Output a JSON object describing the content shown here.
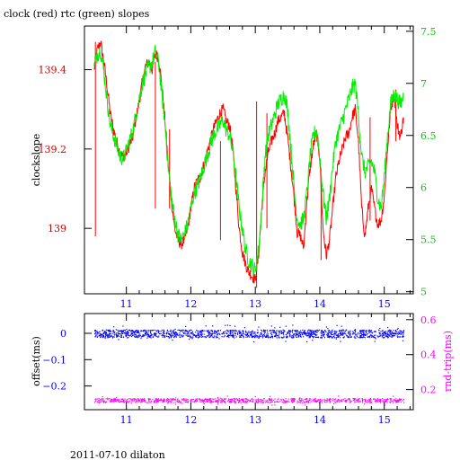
{
  "page": {
    "title": "clock (red) rtc (green) slopes",
    "footer": "2011-07-10 dilaton"
  },
  "colors": {
    "clock": "#ff0000",
    "rtc": "#00ee00",
    "offset": "#0000ff",
    "rndtrip": "#ff00ff",
    "left_axis_top": "#cc0000",
    "right_axis_top": "#00cc00",
    "axis": "#000000"
  },
  "chart_data": [
    {
      "id": "slopes",
      "type": "line",
      "title": "clock (red) rtc (green) slopes",
      "xlabel": "",
      "ylabel": "clockslope",
      "y2label": "",
      "xlim": [
        10.35,
        15.45
      ],
      "ylim": [
        138.835,
        139.51
      ],
      "y2lim": [
        4.98,
        7.55
      ],
      "x_ticks": [
        11,
        12,
        13,
        14,
        15
      ],
      "y_ticks": [
        139,
        139.2,
        139.4
      ],
      "y_tick_labels": [
        "139",
        "139.2",
        "139.4"
      ],
      "y2_ticks": [
        5,
        5.5,
        6,
        6.5,
        7,
        7.5
      ],
      "y2_tick_labels": [
        "5",
        "5.5",
        "6",
        "6.5",
        "7",
        "7.5"
      ],
      "grid": false,
      "series": [
        {
          "name": "clock",
          "axis": "left",
          "x": [
            10.5,
            10.55,
            10.6,
            10.65,
            10.7,
            10.75,
            10.8,
            10.85,
            10.9,
            10.95,
            11.0,
            11.05,
            11.1,
            11.15,
            11.2,
            11.25,
            11.3,
            11.35,
            11.4,
            11.45,
            11.5,
            11.55,
            11.6,
            11.65,
            11.7,
            11.75,
            11.8,
            11.85,
            11.9,
            11.95,
            12.0,
            12.05,
            12.1,
            12.15,
            12.2,
            12.25,
            12.3,
            12.35,
            12.4,
            12.45,
            12.5,
            12.55,
            12.6,
            12.65,
            12.7,
            12.75,
            12.8,
            12.85,
            12.9,
            12.95,
            13.0,
            13.05,
            13.1,
            13.15,
            13.2,
            13.25,
            13.3,
            13.35,
            13.4,
            13.45,
            13.5,
            13.55,
            13.6,
            13.65,
            13.7,
            13.75,
            13.8,
            13.85,
            13.9,
            13.95,
            14.0,
            14.05,
            14.1,
            14.15,
            14.2,
            14.25,
            14.3,
            14.35,
            14.4,
            14.45,
            14.5,
            14.55,
            14.6,
            14.65,
            14.7,
            14.75,
            14.8,
            14.85,
            14.9,
            14.95,
            15.0,
            15.05,
            15.1,
            15.15,
            15.2,
            15.25,
            15.3
          ],
          "values": [
            139.4,
            139.45,
            139.47,
            139.42,
            139.36,
            139.29,
            139.25,
            139.22,
            139.19,
            139.18,
            139.19,
            139.21,
            139.23,
            139.28,
            139.32,
            139.37,
            139.41,
            139.42,
            139.4,
            139.44,
            139.43,
            139.36,
            139.27,
            139.16,
            139.07,
            139.0,
            138.97,
            138.96,
            138.97,
            139.0,
            139.05,
            139.1,
            139.12,
            139.13,
            139.16,
            139.19,
            139.22,
            139.25,
            139.27,
            139.29,
            139.3,
            139.27,
            139.26,
            139.2,
            139.1,
            139.0,
            138.94,
            138.91,
            138.89,
            138.88,
            138.87,
            138.93,
            139.05,
            139.14,
            139.19,
            139.22,
            139.24,
            139.27,
            139.28,
            139.29,
            139.23,
            139.16,
            139.08,
            138.99,
            138.98,
            138.95,
            139.07,
            139.15,
            139.21,
            139.24,
            139.18,
            139.0,
            138.93,
            138.97,
            139.05,
            139.13,
            139.17,
            139.2,
            139.23,
            139.24,
            139.28,
            139.3,
            139.22,
            139.05,
            138.98,
            139.05,
            139.1,
            139.05,
            139.01,
            139.02,
            139.08,
            139.2,
            139.3,
            139.34,
            139.26,
            139.23,
            139.28
          ]
        },
        {
          "name": "rtc",
          "axis": "right",
          "x": [
            10.5,
            10.55,
            10.6,
            10.65,
            10.7,
            10.75,
            10.8,
            10.85,
            10.9,
            10.95,
            11.0,
            11.05,
            11.1,
            11.15,
            11.2,
            11.25,
            11.3,
            11.35,
            11.4,
            11.45,
            11.5,
            11.55,
            11.6,
            11.65,
            11.7,
            11.75,
            11.8,
            11.85,
            11.9,
            11.95,
            12.0,
            12.05,
            12.1,
            12.15,
            12.2,
            12.25,
            12.3,
            12.35,
            12.4,
            12.45,
            12.5,
            12.55,
            12.6,
            12.65,
            12.7,
            12.75,
            12.8,
            12.85,
            12.9,
            12.95,
            13.0,
            13.05,
            13.1,
            13.15,
            13.2,
            13.25,
            13.3,
            13.35,
            13.4,
            13.45,
            13.5,
            13.55,
            13.6,
            13.65,
            13.7,
            13.75,
            13.8,
            13.85,
            13.9,
            13.95,
            14.0,
            14.05,
            14.1,
            14.15,
            14.2,
            14.25,
            14.3,
            14.35,
            14.4,
            14.45,
            14.5,
            14.55,
            14.6,
            14.65,
            14.7,
            14.75,
            14.8,
            14.85,
            14.9,
            14.95,
            15.0,
            15.05,
            15.1,
            15.15,
            15.2,
            15.25,
            15.3
          ],
          "values": [
            7.15,
            7.28,
            7.32,
            7.12,
            6.85,
            6.6,
            6.5,
            6.4,
            6.3,
            6.28,
            6.35,
            6.45,
            6.55,
            6.7,
            6.85,
            7.0,
            7.1,
            7.15,
            7.2,
            7.3,
            7.2,
            6.9,
            6.6,
            6.2,
            5.9,
            5.7,
            5.55,
            5.5,
            5.55,
            5.65,
            5.8,
            5.95,
            6.0,
            6.1,
            6.2,
            6.3,
            6.4,
            6.5,
            6.55,
            6.6,
            6.65,
            6.55,
            6.5,
            6.35,
            6.1,
            5.8,
            5.6,
            5.4,
            5.3,
            5.25,
            5.2,
            5.4,
            5.8,
            6.3,
            6.5,
            6.6,
            6.7,
            6.8,
            6.85,
            6.9,
            6.75,
            6.4,
            6.0,
            5.7,
            5.65,
            5.7,
            5.95,
            6.3,
            6.5,
            6.55,
            6.3,
            5.95,
            5.7,
            5.9,
            6.2,
            6.45,
            6.55,
            6.65,
            6.75,
            6.85,
            6.95,
            7.0,
            6.7,
            6.3,
            6.15,
            6.2,
            6.25,
            6.15,
            5.9,
            5.8,
            6.1,
            6.5,
            6.8,
            6.9,
            6.85,
            6.8,
            6.88
          ]
        }
      ]
    },
    {
      "id": "offsets",
      "type": "scatter",
      "title": "",
      "xlabel": "",
      "ylabel": "offset(ms)",
      "y2label": "rnd-trip(ms)",
      "xlim": [
        10.35,
        15.45
      ],
      "ylim": [
        -0.29,
        0.075
      ],
      "y2lim": [
        0.085,
        0.635
      ],
      "x_ticks": [
        11,
        12,
        13,
        14,
        15
      ],
      "y_ticks": [
        0,
        -0.1,
        -0.2
      ],
      "y_tick_labels": [
        "0",
        "−0.1",
        "−0.2"
      ],
      "y2_ticks": [
        0.2,
        0.4,
        0.6
      ],
      "y2_tick_labels": [
        "0.2",
        "0.4",
        "0.6"
      ],
      "grid": false,
      "series": [
        {
          "name": "offset",
          "axis": "left",
          "x_range": [
            10.5,
            15.3
          ],
          "center": 0.0,
          "spread": 0.015
        },
        {
          "name": "rnd-trip",
          "axis": "right",
          "x_range": [
            10.5,
            15.3
          ],
          "center": 0.14,
          "spread": 0.012
        }
      ]
    }
  ]
}
